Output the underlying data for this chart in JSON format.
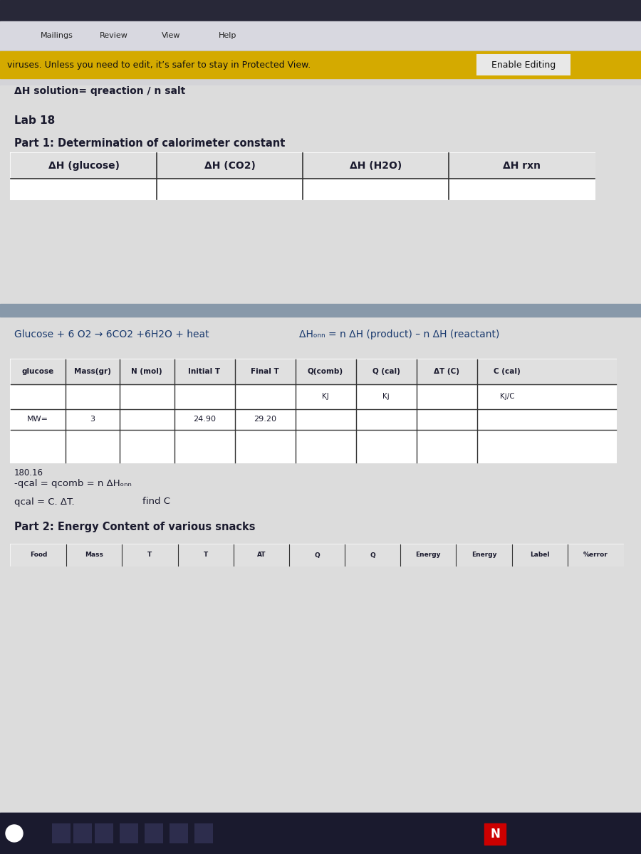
{
  "bg_top_bar": "#c8c8c8",
  "bg_menu_bar": "#d0d0d8",
  "yellow_bar_color": "#d4aa00",
  "yellow_bar_text": "viruses. Unless you need to edit, it’s safer to stay in Protected View.",
  "enable_editing_text": "Enable Editing",
  "main_bg": "#d8d8d8",
  "content_bg": "#e8e8e8",
  "formula_line": "ΔH solution= qreaction / n salt",
  "lab_title": "Lab 18",
  "part1_title": "Part 1: Determination of calorimeter constant",
  "table1_headers": [
    "ΔH (glucose)",
    "ΔH (CO2)",
    "ΔH (H2O)",
    "ΔH rxn"
  ],
  "equation_left": "Glucose + 6 O2 → 6CO2 +6H2O + heat",
  "equation_right": "ΔHₒₙₙ = n ΔH (product) – n ΔH (reactant)",
  "table2_headers": [
    "glucose",
    "Mass(gr)",
    "N (mol)",
    "Initial T",
    "Final T",
    "Q(comb)",
    "Q (cal)",
    "ΔT (C)",
    "C (cal)"
  ],
  "table2_subheaders": [
    "",
    "",
    "",
    "",
    "",
    "KJ",
    "Kj",
    "",
    "Kj/C"
  ],
  "mw_row": [
    "MW=",
    "3",
    "",
    "24.90",
    "29.20",
    "",
    "",
    "",
    ""
  ],
  "mw_value": "180.16",
  "formula2_left": "-qcal = qcomb = n ΔHₒₙₙ",
  "formula3_left": "qcal = C. ΔT.",
  "formula3_right": "find C",
  "part2_title": "Part 2: Energy Content of various snacks",
  "table3_header_partial": "Food",
  "table3_cols": [
    "Food",
    "Mass",
    "T",
    "T",
    "AT",
    "Q",
    "Q",
    "Energy",
    "Energy",
    "Label",
    "%error"
  ],
  "divider_bar_color": "#8899aa",
  "taskbar_color": "#1a1a2e",
  "text_color_dark": "#1a1a2e",
  "text_color_blue": "#1a3a6e"
}
